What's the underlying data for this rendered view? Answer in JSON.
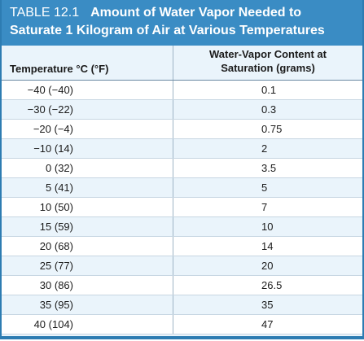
{
  "table": {
    "label": "TABLE 12.1",
    "title_line1": "Amount of Water Vapor Needed to",
    "title_line2": "Saturate 1 Kilogram of Air at Various Temperatures",
    "col1_header": "Temperature °C (°F)",
    "col2_header_line1": "Water-Vapor Content at",
    "col2_header_line2": "Saturation (grams)",
    "rows": [
      {
        "temp": "−40 (−40)",
        "content": "0.1"
      },
      {
        "temp": "−30 (−22)",
        "content": "0.3"
      },
      {
        "temp": "−20 (−4)",
        "content": "0.75"
      },
      {
        "temp": "−10 (14)",
        "content": "2"
      },
      {
        "temp": "0 (32)",
        "content": "3.5"
      },
      {
        "temp": "5 (41)",
        "content": "5"
      },
      {
        "temp": "10 (50)",
        "content": "7"
      },
      {
        "temp": "15 (59)",
        "content": "10"
      },
      {
        "temp": "20 (68)",
        "content": "14"
      },
      {
        "temp": "25 (77)",
        "content": "20"
      },
      {
        "temp": "30 (86)",
        "content": "26.5"
      },
      {
        "temp": "35 (95)",
        "content": "35"
      },
      {
        "temp": "40 (104)",
        "content": "47"
      }
    ]
  },
  "colors": {
    "banner": "#3a8cc4",
    "border": "#2d7cb2",
    "stripe": "#eaf4fb"
  }
}
